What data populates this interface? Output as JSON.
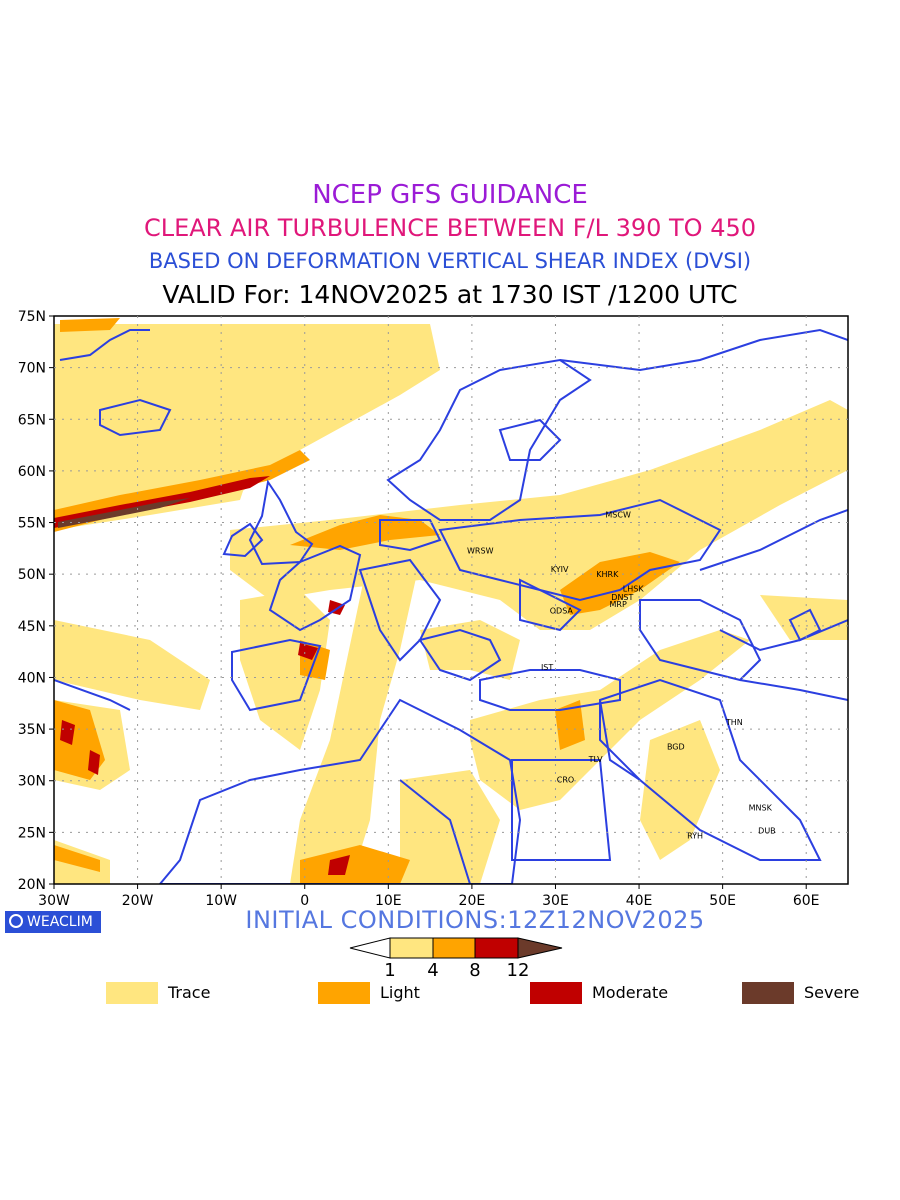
{
  "titles": {
    "line1": "NCEP GFS GUIDANCE",
    "line2": "CLEAR AIR TURBULENCE BETWEEN F/L 390 TO 450",
    "line3": "BASED ON DEFORMATION VERTICAL SHEAR INDEX (DVSI)",
    "line4": "VALID For: 14NOV2025 at 1730 IST /1200 UTC"
  },
  "colors": {
    "title1": "#9b1bd6",
    "title2": "#e0177a",
    "title3": "#2b4fd6",
    "title4": "#000000",
    "init": "#5577e0",
    "boundaries": "#2b3fe0",
    "trace": "#ffe680",
    "light": "#ffa400",
    "moderate": "#c00000",
    "severe": "#6b3a2a"
  },
  "map": {
    "lon_range": [
      -30,
      65
    ],
    "lat_range": [
      20,
      75
    ],
    "lat_ticks": [
      "75N",
      "70N",
      "65N",
      "60N",
      "55N",
      "50N",
      "45N",
      "40N",
      "35N",
      "30N",
      "25N",
      "20N"
    ],
    "lon_ticks": [
      "30W",
      "20W",
      "10W",
      "0",
      "10E",
      "20E",
      "30E",
      "40E",
      "50E",
      "60E"
    ],
    "stations": [
      {
        "name": "MSCW",
        "lon": 37.5,
        "lat": 55.8
      },
      {
        "name": "WRSW",
        "lon": 21.0,
        "lat": 52.3
      },
      {
        "name": "KYIV",
        "lon": 30.5,
        "lat": 50.5
      },
      {
        "name": "KHRK",
        "lon": 36.2,
        "lat": 50.0
      },
      {
        "name": "LHSK",
        "lon": 39.3,
        "lat": 48.6
      },
      {
        "name": "DNST",
        "lon": 38.0,
        "lat": 47.8
      },
      {
        "name": "MRP",
        "lon": 37.5,
        "lat": 47.1
      },
      {
        "name": "ODSA",
        "lon": 30.7,
        "lat": 46.5
      },
      {
        "name": "IST",
        "lon": 29.0,
        "lat": 41.0
      },
      {
        "name": "THN",
        "lon": 51.4,
        "lat": 35.7
      },
      {
        "name": "BGD",
        "lon": 44.4,
        "lat": 33.3
      },
      {
        "name": "TLV",
        "lon": 34.8,
        "lat": 32.1
      },
      {
        "name": "CRO",
        "lon": 31.2,
        "lat": 30.1
      },
      {
        "name": "MNSK",
        "lon": 54.5,
        "lat": 27.4
      },
      {
        "name": "DUB",
        "lon": 55.3,
        "lat": 25.2
      },
      {
        "name": "RYH",
        "lon": 46.7,
        "lat": 24.7
      }
    ]
  },
  "badge": "WEACLIM",
  "initial_conditions": "INITIAL CONDITIONS:12Z12NOV2025",
  "colorbar": {
    "ticks": [
      "1",
      "4",
      "8",
      "12"
    ]
  },
  "legend": [
    {
      "label": "Trace"
    },
    {
      "label": "Light"
    },
    {
      "label": "Moderate"
    },
    {
      "label": "Severe"
    }
  ]
}
